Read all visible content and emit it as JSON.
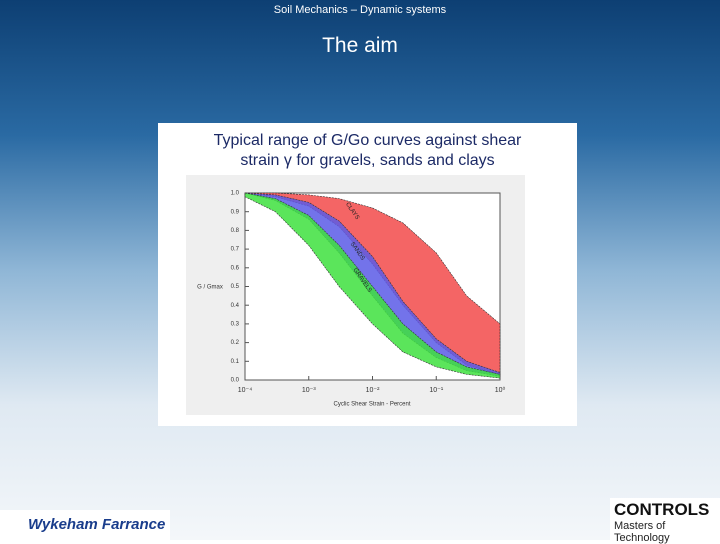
{
  "header": {
    "subtitle": "Soil Mechanics – Dynamic systems",
    "title": "The aim"
  },
  "figure": {
    "caption": [
      "Typical range of G/Go curves against shear",
      "strain γ  for gravels, sands and clays"
    ]
  },
  "chart_data": {
    "type": "band",
    "x_label": "Cyclic Shear Strain - Percent",
    "y_label": "G / Gmax",
    "x": [
      0.0001,
      0.0003,
      0.001,
      0.003,
      0.01,
      0.03,
      0.1,
      0.3,
      1
    ],
    "x_log": true,
    "xlim": [
      0.0001,
      1
    ],
    "xticks": [
      {
        "value": 0.0001,
        "label": "10⁻⁴"
      },
      {
        "value": 0.001,
        "label": "10⁻³"
      },
      {
        "value": 0.01,
        "label": "10⁻²"
      },
      {
        "value": 0.1,
        "label": "10⁻¹"
      },
      {
        "value": 1,
        "label": "10⁰"
      }
    ],
    "ylim": [
      0,
      1
    ],
    "yticks": [
      {
        "value": 0,
        "label": "0.0"
      },
      0.1,
      0.2,
      0.3,
      0.4,
      0.5,
      0.6,
      0.7,
      0.8,
      0.9,
      {
        "value": 1,
        "label": "1.0"
      }
    ],
    "series": [
      {
        "name": "CLAYS",
        "color": "#f24a4a",
        "lower": [
          1.0,
          0.98,
          0.93,
          0.82,
          0.62,
          0.4,
          0.2,
          0.08,
          0.03
        ],
        "upper": [
          1.0,
          1.0,
          0.99,
          0.97,
          0.92,
          0.84,
          0.68,
          0.45,
          0.3
        ]
      },
      {
        "name": "SANDS",
        "color": "#5a5ae6",
        "lower": [
          1.0,
          0.96,
          0.86,
          0.68,
          0.45,
          0.25,
          0.12,
          0.05,
          0.02
        ],
        "upper": [
          1.0,
          0.99,
          0.95,
          0.85,
          0.66,
          0.42,
          0.22,
          0.1,
          0.04
        ]
      },
      {
        "name": "GRAVELS",
        "color": "#3ee03e",
        "lower": [
          0.98,
          0.9,
          0.72,
          0.5,
          0.3,
          0.15,
          0.07,
          0.03,
          0.01
        ],
        "upper": [
          1.0,
          0.97,
          0.88,
          0.72,
          0.5,
          0.3,
          0.15,
          0.07,
          0.03
        ]
      }
    ]
  },
  "logos": {
    "left": "Wykeham Farrance",
    "right": "CONTROLS",
    "right_tagline": "Masters of Technology"
  }
}
